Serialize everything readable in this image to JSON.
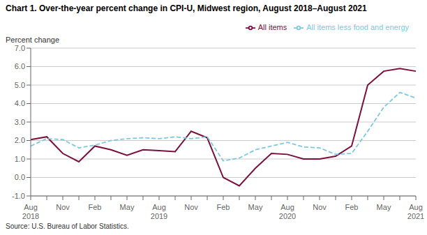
{
  "chart_data": {
    "type": "line",
    "title": "Chart 1. Over-the-year percent change in CPI-U, Midwest region, August 2018–August 2021",
    "y_label": "Percent change",
    "source": "Source: U.S. Bureau of Labor Statistics.",
    "categories": [
      "Aug\n2018",
      null,
      "Nov",
      null,
      "Feb",
      null,
      "May",
      null,
      "Aug\n2019",
      null,
      "Nov",
      null,
      "Feb",
      null,
      "May",
      null,
      "Aug\n2020",
      null,
      "Nov",
      null,
      "Feb",
      null,
      "May",
      null,
      "Aug\n2021"
    ],
    "series": [
      {
        "name": "All items",
        "color": "#7B1040",
        "line_style": "solid",
        "values": [
          2.05,
          2.2,
          1.3,
          0.85,
          1.7,
          1.5,
          1.2,
          1.5,
          1.45,
          1.4,
          2.5,
          2.15,
          0.0,
          -0.45,
          0.5,
          1.3,
          1.25,
          1.0,
          1.0,
          1.15,
          1.7,
          5.0,
          5.75,
          5.9,
          5.75
        ]
      },
      {
        "name": "All items less food and energy",
        "color": "#7EC8E3",
        "line_style": "dashed",
        "values": [
          1.7,
          2.1,
          2.05,
          1.6,
          1.75,
          2.0,
          2.1,
          2.15,
          2.1,
          2.2,
          2.1,
          2.2,
          0.9,
          1.05,
          1.5,
          1.7,
          1.9,
          1.65,
          1.6,
          1.25,
          1.3,
          2.5,
          3.8,
          4.6,
          4.3
        ]
      }
    ],
    "ylim": [
      -1.0,
      7.0
    ],
    "yticks": [
      {
        "value": -1,
        "label": "-1.0"
      },
      {
        "value": 0,
        "label": "0.0"
      },
      {
        "value": 1,
        "label": "1.0"
      },
      {
        "value": 2,
        "label": "2.0"
      },
      {
        "value": 3,
        "label": "3.0"
      },
      {
        "value": 4,
        "label": "4.0"
      },
      {
        "value": 5,
        "label": "5.0"
      },
      {
        "value": 6,
        "label": "6.0"
      },
      {
        "value": 7,
        "label": "7.0"
      }
    ],
    "grid": true,
    "legend": "upper right"
  }
}
